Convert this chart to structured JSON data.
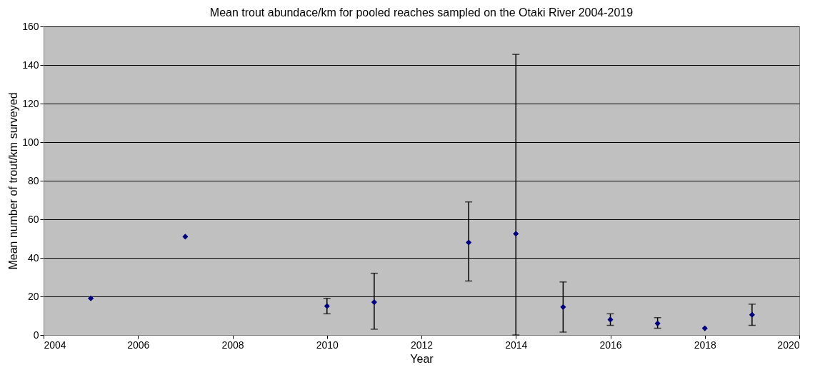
{
  "chart_data": {
    "type": "scatter",
    "title": "Mean trout abundace/km for pooled reaches sampled on the Otaki River 2004-2019",
    "xlabel": "Year",
    "ylabel": "Mean number of trout/km surveyed",
    "x": [
      2005,
      2007,
      2010,
      2011,
      2013,
      2014,
      2015,
      2016,
      2017,
      2018,
      2019
    ],
    "values": [
      19,
      51,
      15,
      17,
      48,
      52.5,
      14.5,
      8,
      6,
      3.5,
      10.5
    ],
    "errors": [
      null,
      null,
      [
        11,
        19
      ],
      [
        3,
        32
      ],
      [
        28,
        69
      ],
      [
        0,
        145.5
      ],
      [
        1.5,
        27.5
      ],
      [
        5,
        11
      ],
      [
        3.5,
        9
      ],
      null,
      [
        5,
        16
      ]
    ],
    "color": "#000080",
    "marker": "diamond",
    "grid": "y",
    "xlim": [
      2004,
      2020
    ],
    "xticks": [
      2004,
      2006,
      2008,
      2010,
      2012,
      2014,
      2016,
      2018,
      2020
    ],
    "ylim": [
      0,
      160
    ],
    "yticks": [
      0,
      20,
      40,
      60,
      80,
      100,
      120,
      140,
      160
    ]
  }
}
